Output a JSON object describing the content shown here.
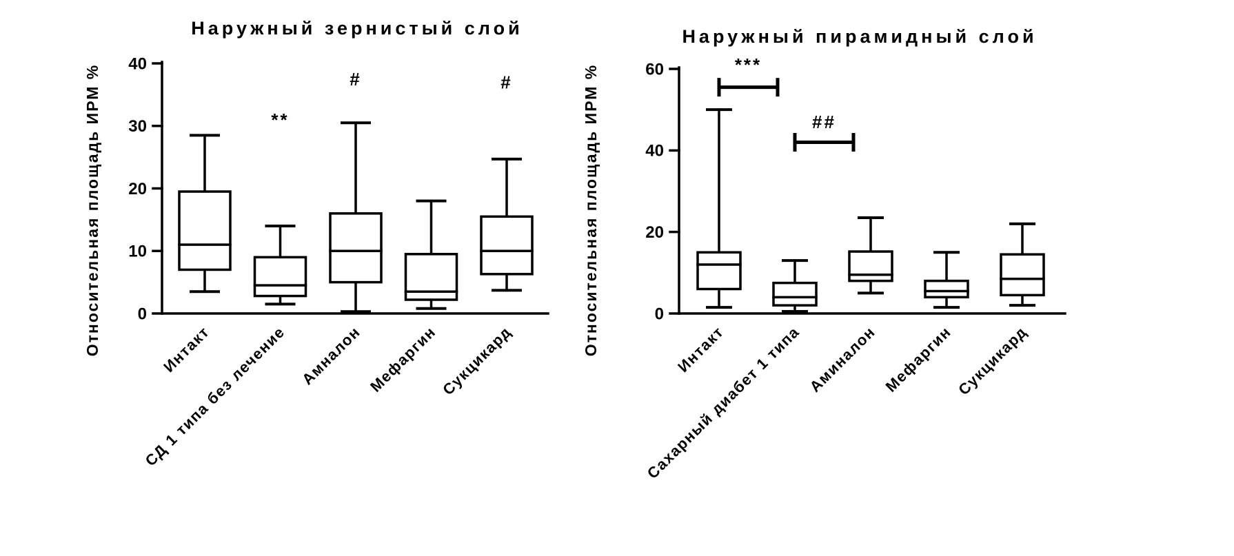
{
  "figure": {
    "background": "#ffffff",
    "ink": "#000000"
  },
  "chart_data": [
    {
      "type": "box",
      "title": "Наружный зернистый слой",
      "ylabel": "Относительная площадь ИРМ %",
      "xlabel": "",
      "ylim": [
        0,
        40
      ],
      "yticks": [
        0,
        10,
        20,
        30,
        40
      ],
      "grid": false,
      "legend": false,
      "categories": [
        "Интакт",
        "СД 1 типа без лечение",
        "Амналон",
        "Мефаргин",
        "Сукцикард"
      ],
      "series": [
        {
          "category": "Интакт",
          "whisker_low": 3.5,
          "q1": 7.0,
          "median": 11.0,
          "q3": 19.5,
          "whisker_high": 28.5
        },
        {
          "category": "СД 1 типа без лечение",
          "whisker_low": 1.5,
          "q1": 2.8,
          "median": 4.5,
          "q3": 9.0,
          "whisker_high": 14.0
        },
        {
          "category": "Амналон",
          "whisker_low": 0.3,
          "q1": 5.0,
          "median": 10.0,
          "q3": 16.0,
          "whisker_high": 30.5
        },
        {
          "category": "Мефаргин",
          "whisker_low": 0.8,
          "q1": 2.2,
          "median": 3.5,
          "q3": 9.5,
          "whisker_high": 18.0
        },
        {
          "category": "Сукцикард",
          "whisker_low": 3.7,
          "q1": 6.3,
          "median": 10.0,
          "q3": 15.5,
          "whisker_high": 24.7
        }
      ],
      "annotations": [
        {
          "type": "text",
          "label": "**",
          "category_index": 1,
          "y": 30.0
        },
        {
          "type": "text",
          "label": "#",
          "category_index": 2,
          "y": 36.5
        },
        {
          "type": "text",
          "label": "#",
          "category_index": 4,
          "y": 36.0
        }
      ]
    },
    {
      "type": "box",
      "title": "Наружный пирамидный слой",
      "ylabel": "Относительная площадь ИРМ %",
      "xlabel": "",
      "ylim": [
        0,
        60
      ],
      "yticks": [
        0,
        20,
        40,
        60
      ],
      "grid": false,
      "legend": false,
      "categories": [
        "Интакт",
        "Сахарный диабет 1 типа",
        "Аминалон",
        "Мефаргин",
        "Сукцикард"
      ],
      "series": [
        {
          "category": "Интакт",
          "whisker_low": 1.5,
          "q1": 6.0,
          "median": 12.0,
          "q3": 15.0,
          "whisker_high": 50.0
        },
        {
          "category": "Сахарный диабет 1 типа",
          "whisker_low": 0.5,
          "q1": 2.0,
          "median": 4.0,
          "q3": 7.5,
          "whisker_high": 13.0
        },
        {
          "category": "Аминалон",
          "whisker_low": 5.0,
          "q1": 8.0,
          "median": 9.5,
          "q3": 15.2,
          "whisker_high": 23.5
        },
        {
          "category": "Мефаргин",
          "whisker_low": 1.5,
          "q1": 4.0,
          "median": 5.5,
          "q3": 8.0,
          "whisker_high": 15.0
        },
        {
          "category": "Сукцикард",
          "whisker_low": 2.0,
          "q1": 4.5,
          "median": 8.5,
          "q3": 14.5,
          "whisker_high": 22.0
        }
      ],
      "annotations": [
        {
          "type": "bracket",
          "label": "***",
          "from_index": 0,
          "to_index": 1,
          "y": 55.5,
          "label_y": 59.5
        },
        {
          "type": "bracket",
          "label": "##",
          "from_index": 1,
          "to_index": 2,
          "y": 42.0,
          "label_y": 45.5
        }
      ]
    }
  ]
}
